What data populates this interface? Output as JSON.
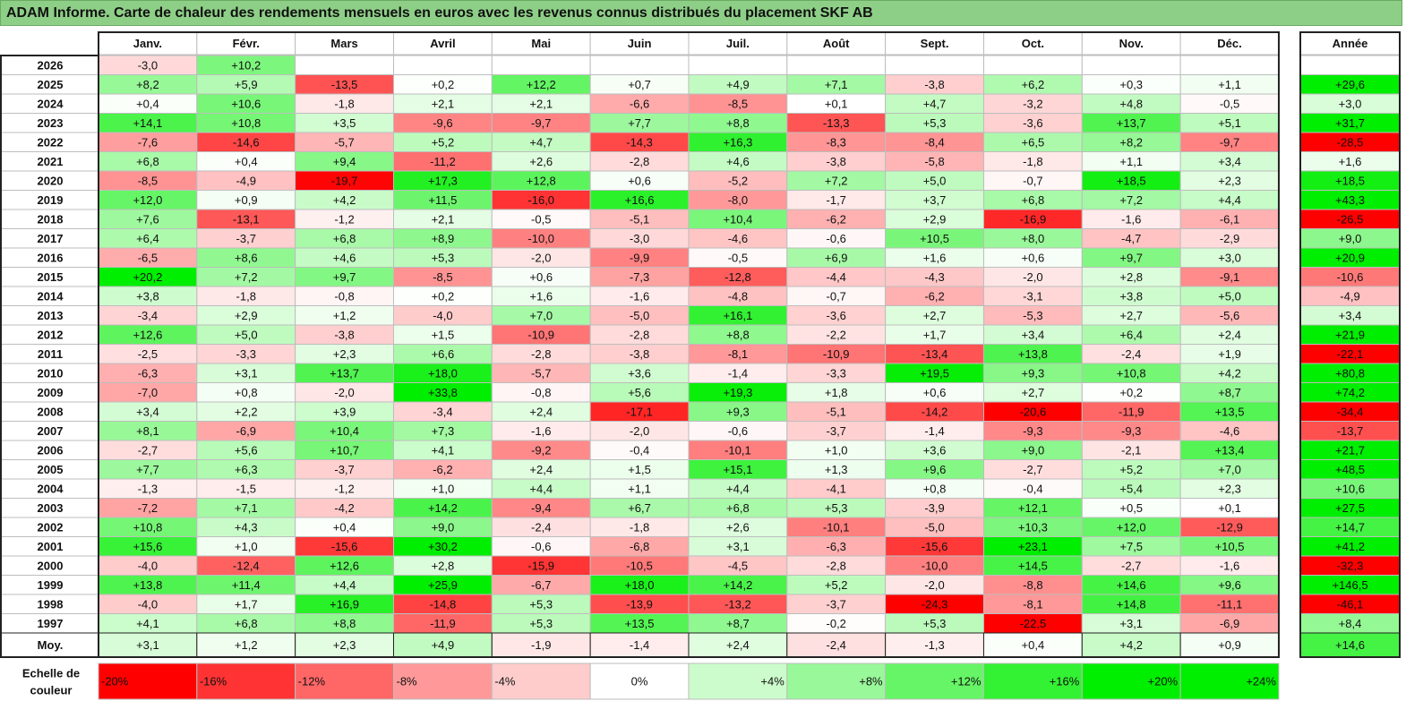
{
  "title": "ADAM Informe. Carte de chaleur des rendements mensuels en euros avec les revenus connus distribués du placement SKF AB",
  "chart_data": {
    "type": "heatmap",
    "title": "ADAM Informe. Carte de chaleur des rendements mensuels en euros avec les revenus connus distribués du placement SKF AB",
    "columns": [
      "Janv.",
      "Févr.",
      "Mars",
      "Avril",
      "Mai",
      "Juin",
      "Juil.",
      "Août",
      "Sept.",
      "Oct.",
      "Nov.",
      "Déc."
    ],
    "year_column_label": "Année",
    "average_row_label": "Moy.",
    "rows": [
      {
        "year": "2026",
        "months": [
          "-3,0",
          "+10,2",
          "",
          "",
          "",
          "",
          "",
          "",
          "",
          "",
          "",
          ""
        ],
        "annual": ""
      },
      {
        "year": "2025",
        "months": [
          "+8,2",
          "+5,9",
          "-13,5",
          "+0,2",
          "+12,2",
          "+0,7",
          "+4,9",
          "+7,1",
          "-3,8",
          "+6,2",
          "+0,3",
          "+1,1"
        ],
        "annual": "+29,6"
      },
      {
        "year": "2024",
        "months": [
          "+0,4",
          "+10,6",
          "-1,8",
          "+2,1",
          "+2,1",
          "-6,6",
          "-8,5",
          "+0,1",
          "+4,7",
          "-3,2",
          "+4,8",
          "-0,5"
        ],
        "annual": "+3,0"
      },
      {
        "year": "2023",
        "months": [
          "+14,1",
          "+10,8",
          "+3,5",
          "-9,6",
          "-9,7",
          "+7,7",
          "+8,8",
          "-13,3",
          "+5,3",
          "-3,6",
          "+13,7",
          "+5,1"
        ],
        "annual": "+31,7"
      },
      {
        "year": "2022",
        "months": [
          "-7,6",
          "-14,6",
          "-5,7",
          "+5,2",
          "+4,7",
          "-14,3",
          "+16,3",
          "-8,3",
          "-8,4",
          "+6,5",
          "+8,2",
          "-9,7"
        ],
        "annual": "-28,5"
      },
      {
        "year": "2021",
        "months": [
          "+6,8",
          "+0,4",
          "+9,4",
          "-11,2",
          "+2,6",
          "-2,8",
          "+4,6",
          "-3,8",
          "-5,8",
          "-1,8",
          "+1,1",
          "+3,4"
        ],
        "annual": "+1,6"
      },
      {
        "year": "2020",
        "months": [
          "-8,5",
          "-4,9",
          "-19,7",
          "+17,3",
          "+12,8",
          "+0,6",
          "-5,2",
          "+7,2",
          "+5,0",
          "-0,7",
          "+18,5",
          "+2,3"
        ],
        "annual": "+18,5"
      },
      {
        "year": "2019",
        "months": [
          "+12,0",
          "+0,9",
          "+4,2",
          "+11,5",
          "-16,0",
          "+16,6",
          "-8,0",
          "-1,7",
          "+3,7",
          "+6,8",
          "+7,2",
          "+4,4"
        ],
        "annual": "+43,3"
      },
      {
        "year": "2018",
        "months": [
          "+7,6",
          "-13,1",
          "-1,2",
          "+2,1",
          "-0,5",
          "-5,1",
          "+10,4",
          "-6,2",
          "+2,9",
          "-16,9",
          "-1,6",
          "-6,1"
        ],
        "annual": "-26,5"
      },
      {
        "year": "2017",
        "months": [
          "+6,4",
          "-3,7",
          "+6,8",
          "+8,9",
          "-10,0",
          "-3,0",
          "-4,6",
          "-0,6",
          "+10,5",
          "+8,0",
          "-4,7",
          "-2,9"
        ],
        "annual": "+9,0"
      },
      {
        "year": "2016",
        "months": [
          "-6,5",
          "+8,6",
          "+4,6",
          "+5,3",
          "-2,0",
          "-9,9",
          "-0,5",
          "+6,9",
          "+1,6",
          "+0,6",
          "+9,7",
          "+3,0"
        ],
        "annual": "+20,9"
      },
      {
        "year": "2015",
        "months": [
          "+20,2",
          "+7,2",
          "+9,7",
          "-8,5",
          "+0,6",
          "-7,3",
          "-12,8",
          "-4,4",
          "-4,3",
          "-2,0",
          "+2,8",
          "-9,1"
        ],
        "annual": "-10,6"
      },
      {
        "year": "2014",
        "months": [
          "+3,8",
          "-1,8",
          "-0,8",
          "+0,2",
          "+1,6",
          "-1,6",
          "-4,8",
          "-0,7",
          "-6,2",
          "-3,1",
          "+3,8",
          "+5,0"
        ],
        "annual": "-4,9"
      },
      {
        "year": "2013",
        "months": [
          "-3,4",
          "+2,9",
          "+1,2",
          "-4,0",
          "+7,0",
          "-5,0",
          "+16,1",
          "-3,6",
          "+2,7",
          "-5,3",
          "+2,7",
          "-5,6"
        ],
        "annual": "+3,4"
      },
      {
        "year": "2012",
        "months": [
          "+12,6",
          "+5,0",
          "-3,8",
          "+1,5",
          "-10,9",
          "-2,8",
          "+8,8",
          "-2,2",
          "+1,7",
          "+3,4",
          "+6,4",
          "+2,4"
        ],
        "annual": "+21,9"
      },
      {
        "year": "2011",
        "months": [
          "-2,5",
          "-3,3",
          "+2,3",
          "+6,6",
          "-2,8",
          "-3,8",
          "-8,1",
          "-10,9",
          "-13,4",
          "+13,8",
          "-2,4",
          "+1,9"
        ],
        "annual": "-22,1"
      },
      {
        "year": "2010",
        "months": [
          "-6,3",
          "+3,1",
          "+13,7",
          "+18,0",
          "-5,7",
          "+3,6",
          "-1,4",
          "-3,3",
          "+19,5",
          "+9,3",
          "+10,8",
          "+4,2"
        ],
        "annual": "+80,8"
      },
      {
        "year": "2009",
        "months": [
          "-7,0",
          "+0,8",
          "-2,0",
          "+33,8",
          "-0,8",
          "+5,6",
          "+19,3",
          "+1,8",
          "+0,6",
          "+2,7",
          "+0,2",
          "+8,7"
        ],
        "annual": "+74,2"
      },
      {
        "year": "2008",
        "months": [
          "+3,4",
          "+2,2",
          "+3,9",
          "-3,4",
          "+2,4",
          "-17,1",
          "+9,3",
          "-5,1",
          "-14,2",
          "-20,6",
          "-11,9",
          "+13,5"
        ],
        "annual": "-34,4"
      },
      {
        "year": "2007",
        "months": [
          "+8,1",
          "-6,9",
          "+10,4",
          "+7,3",
          "-1,6",
          "-2,0",
          "-0,6",
          "-3,7",
          "-1,4",
          "-9,3",
          "-9,3",
          "-4,6"
        ],
        "annual": "-13,7"
      },
      {
        "year": "2006",
        "months": [
          "-2,7",
          "+5,6",
          "+10,7",
          "+4,1",
          "-9,2",
          "-0,4",
          "-10,1",
          "+1,0",
          "+3,6",
          "+9,0",
          "-2,1",
          "+13,4"
        ],
        "annual": "+21,7"
      },
      {
        "year": "2005",
        "months": [
          "+7,7",
          "+6,3",
          "-3,7",
          "-6,2",
          "+2,4",
          "+1,5",
          "+15,1",
          "+1,3",
          "+9,6",
          "-2,7",
          "+5,2",
          "+7,0"
        ],
        "annual": "+48,5"
      },
      {
        "year": "2004",
        "months": [
          "-1,3",
          "-1,5",
          "-1,2",
          "+1,0",
          "+4,4",
          "+1,1",
          "+4,4",
          "-4,1",
          "+0,8",
          "-0,4",
          "+5,4",
          "+2,3"
        ],
        "annual": "+10,6"
      },
      {
        "year": "2003",
        "months": [
          "-7,2",
          "+7,1",
          "-4,2",
          "+14,2",
          "-9,4",
          "+6,7",
          "+6,8",
          "+5,3",
          "-3,9",
          "+12,1",
          "+0,5",
          "+0,1"
        ],
        "annual": "+27,5"
      },
      {
        "year": "2002",
        "months": [
          "+10,8",
          "+4,3",
          "+0,4",
          "+9,0",
          "-2,4",
          "-1,8",
          "+2,6",
          "-10,1",
          "-5,0",
          "+10,3",
          "+12,0",
          "-12,9"
        ],
        "annual": "+14,7"
      },
      {
        "year": "2001",
        "months": [
          "+15,6",
          "+1,0",
          "-15,6",
          "+30,2",
          "-0,6",
          "-6,8",
          "+3,1",
          "-6,3",
          "-15,6",
          "+23,1",
          "+7,5",
          "+10,5"
        ],
        "annual": "+41,2"
      },
      {
        "year": "2000",
        "months": [
          "-4,0",
          "-12,4",
          "+12,6",
          "+2,8",
          "-15,9",
          "-10,5",
          "-4,5",
          "-2,8",
          "-10,0",
          "+14,5",
          "-2,7",
          "-1,6"
        ],
        "annual": "-32,3"
      },
      {
        "year": "1999",
        "months": [
          "+13,8",
          "+11,4",
          "+4,4",
          "+25,9",
          "-6,7",
          "+18,0",
          "+14,2",
          "+5,2",
          "-2,0",
          "-8,8",
          "+14,6",
          "+9,6"
        ],
        "annual": "+146,5"
      },
      {
        "year": "1998",
        "months": [
          "-4,0",
          "+1,7",
          "+16,9",
          "-14,8",
          "+5,3",
          "-13,9",
          "-13,2",
          "-3,7",
          "-24,3",
          "-8,1",
          "+14,8",
          "-11,1"
        ],
        "annual": "-46,1"
      },
      {
        "year": "1997",
        "months": [
          "+4,1",
          "+6,8",
          "+8,8",
          "-11,9",
          "+5,3",
          "+13,5",
          "+8,7",
          "-0,2",
          "+5,3",
          "-22,5",
          "+3,1",
          "-6,9"
        ],
        "annual": "+8,4"
      }
    ],
    "average": {
      "months": [
        "+3,1",
        "+1,2",
        "+2,3",
        "+4,9",
        "-1,9",
        "-1,4",
        "+2,4",
        "-2,4",
        "-1,3",
        "+0,4",
        "+4,2",
        "+0,9"
      ],
      "annual": "+14,6"
    },
    "scale_label": [
      "Echelle de",
      "couleur"
    ],
    "scale": [
      {
        "label": "-20%",
        "value": -20
      },
      {
        "label": "-16%",
        "value": -16
      },
      {
        "label": "-12%",
        "value": -12
      },
      {
        "label": "-8%",
        "value": -8
      },
      {
        "label": "-4%",
        "value": -4
      },
      {
        "label": "0%",
        "value": 0
      },
      {
        "label": "+4%",
        "value": 4
      },
      {
        "label": "+8%",
        "value": 8
      },
      {
        "label": "+12%",
        "value": 12
      },
      {
        "label": "+16%",
        "value": 16
      },
      {
        "label": "+20%",
        "value": 20
      },
      {
        "label": "+24%",
        "value": 24
      }
    ],
    "colors": {
      "negative": "#ff0000",
      "neutral": "#ffffff",
      "positive": "#00ee00"
    }
  }
}
